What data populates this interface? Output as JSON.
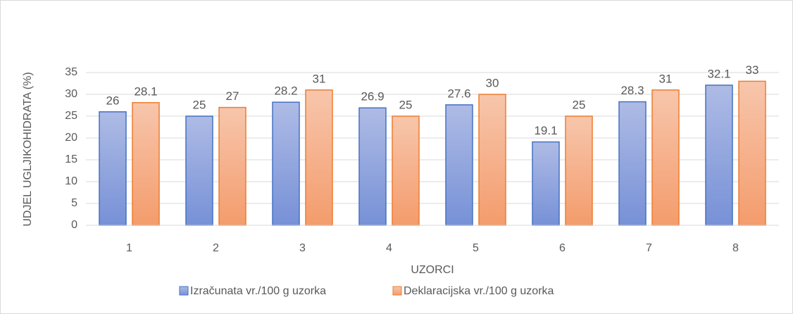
{
  "chart_data": {
    "type": "bar",
    "x_label": "UZORCI",
    "y_label": "UDJEL UGLJIKOHIDRATA (%)",
    "categories": [
      "1",
      "2",
      "3",
      "4",
      "5",
      "6",
      "7",
      "8"
    ],
    "series": [
      {
        "name": "Izračunata vr./100 g uzorka",
        "color": "#4472c4",
        "values": [
          26,
          25,
          28.2,
          26.9,
          27.6,
          19.1,
          28.3,
          32.1
        ]
      },
      {
        "name": "Deklaracijska vr./100 g uzorka",
        "color": "#ed7d31",
        "values": [
          28.1,
          27,
          31,
          25,
          30,
          25,
          31,
          33
        ]
      }
    ],
    "ylim": [
      0,
      35
    ],
    "yticks": [
      0,
      5,
      10,
      15,
      20,
      25,
      30,
      35
    ],
    "grid": true,
    "legend": "bottom"
  }
}
